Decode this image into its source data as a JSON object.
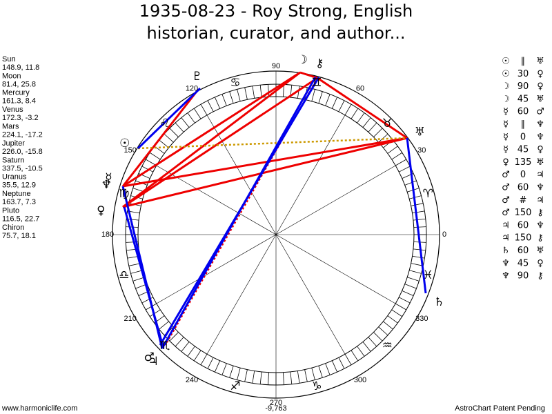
{
  "title": [
    "1935-08-23 - Roy Strong, English",
    "historian, curator, and author..."
  ],
  "planets": [
    {
      "name": "Sun",
      "position": "148.9, 11.8",
      "glyph": "☉"
    },
    {
      "name": "Moon",
      "position": "81.4, 25.8",
      "glyph": "☽"
    },
    {
      "name": "Mercury",
      "position": "161.3, 8.4",
      "glyph": "☿"
    },
    {
      "name": "Venus",
      "position": "172.3, -3.2",
      "glyph": "♀"
    },
    {
      "name": "Mars",
      "position": "224.1, -17.2",
      "glyph": "♂"
    },
    {
      "name": "Jupiter",
      "position": "226.0, -15.8",
      "glyph": "♃"
    },
    {
      "name": "Saturn",
      "position": "337.5, -10.5",
      "glyph": "♄"
    },
    {
      "name": "Uranus",
      "position": "35.5, 12.9",
      "glyph": "♅"
    },
    {
      "name": "Neptune",
      "position": "163.7, 7.3",
      "glyph": "♆"
    },
    {
      "name": "Pluto",
      "position": "116.5, 22.7",
      "glyph": "♇"
    },
    {
      "name": "Chiron",
      "position": "75.7, 18.1",
      "glyph": "⚷"
    }
  ],
  "degree_labels": [
    0,
    30,
    60,
    90,
    120,
    150,
    180,
    210,
    240,
    270,
    300,
    330
  ],
  "signs": [
    "♈",
    "♉",
    "♊",
    "♋",
    "♌",
    "♍",
    "♎",
    "♏",
    "♐",
    "♑",
    "♒",
    "♓"
  ],
  "aspects": [
    [
      "☉",
      "∥",
      "♅"
    ],
    [
      "☉",
      "30",
      "♀"
    ],
    [
      "☽",
      "90",
      "♀"
    ],
    [
      "☽",
      "45",
      "♅"
    ],
    [
      "☿",
      "60",
      "♂"
    ],
    [
      "☿",
      "∥",
      "♆"
    ],
    [
      "☿",
      "0",
      "♆"
    ],
    [
      "☿",
      "45",
      "♀"
    ],
    [
      "♀",
      "135",
      "♅"
    ],
    [
      "♂",
      "0",
      "♃"
    ],
    [
      "♂",
      "60",
      "♆"
    ],
    [
      "♂",
      "#",
      "♃"
    ],
    [
      "♂",
      "150",
      "⚷"
    ],
    [
      "♃",
      "60",
      "♆"
    ],
    [
      "♃",
      "150",
      "⚷"
    ],
    [
      "♄",
      "60",
      "♅"
    ],
    [
      "♆",
      "45",
      "♀"
    ],
    [
      "♆",
      "90",
      "⚷"
    ]
  ],
  "footer": {
    "left": "www.harmoniclife.com",
    "center": "-9,763",
    "right": "AstroChart Patent Pending"
  }
}
